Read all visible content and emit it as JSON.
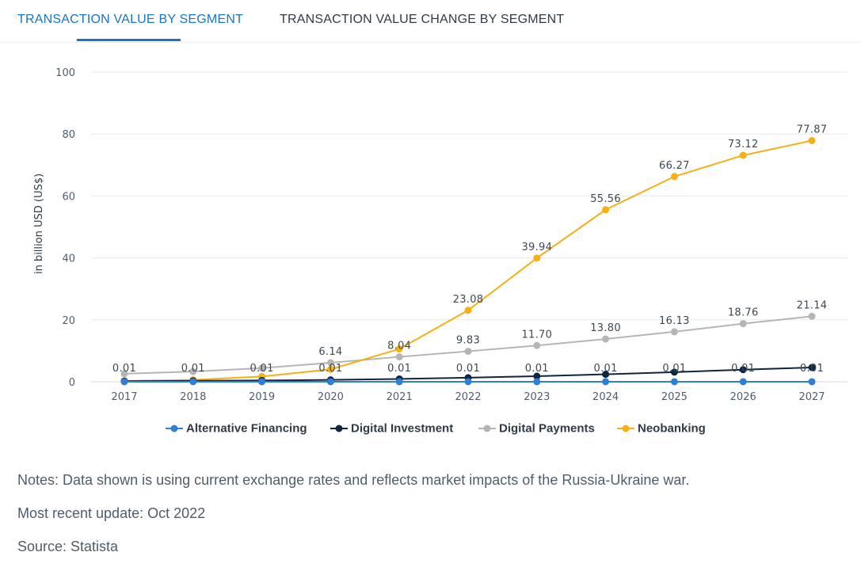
{
  "tabs": [
    {
      "label": "TRANSACTION VALUE BY SEGMENT",
      "active": true
    },
    {
      "label": "TRANSACTION VALUE CHANGE BY SEGMENT",
      "active": false
    }
  ],
  "colors": {
    "accent": "#1a73c4",
    "alternative_financing": "#2f7fd8",
    "digital_investment": "#0f2640",
    "digital_payments": "#b5b5b5",
    "neobanking": "#f5b013"
  },
  "chart_data": {
    "type": "line",
    "title": "",
    "xlabel": "",
    "ylabel": "in billion USD (US$)",
    "ylim": [
      0,
      100
    ],
    "yticks": [
      0,
      20,
      40,
      60,
      80,
      100
    ],
    "grid": true,
    "legend_position": "bottom",
    "x": [
      "2017",
      "2018",
      "2019",
      "2020",
      "2021",
      "2022",
      "2023",
      "2024",
      "2025",
      "2026",
      "2027"
    ],
    "series": [
      {
        "name": "Alternative Financing",
        "color": "#2f7fd8",
        "values": [
          0.01,
          0.01,
          0.01,
          0.01,
          0.01,
          0.01,
          0.01,
          0.01,
          0.01,
          0.01,
          0.01
        ],
        "labels": [
          "0.01",
          "0.01",
          "0.01",
          "0.01",
          "0.01",
          "0.01",
          "0.01",
          "0.01",
          "0.01",
          "0.01",
          "0.01"
        ]
      },
      {
        "name": "Digital Investment",
        "color": "#0f2640",
        "values": [
          0.2,
          0.3,
          0.4,
          0.6,
          0.9,
          1.3,
          1.8,
          2.4,
          3.1,
          3.9,
          4.6
        ],
        "labels": []
      },
      {
        "name": "Digital Payments",
        "color": "#b5b5b5",
        "values": [
          2.6,
          3.3,
          4.4,
          6.14,
          8.04,
          9.83,
          11.7,
          13.8,
          16.13,
          18.76,
          21.14
        ],
        "labels": [
          "",
          "",
          "",
          "6.14",
          "8.04",
          "9.83",
          "11.70",
          "13.80",
          "16.13",
          "18.76",
          "21.14"
        ]
      },
      {
        "name": "Neobanking",
        "color": "#f5b013",
        "values": [
          0.3,
          0.6,
          1.7,
          4.0,
          10.6,
          23.08,
          39.94,
          55.56,
          66.27,
          73.12,
          77.87
        ],
        "labels": [
          "",
          "",
          "",
          "",
          "",
          "23.08",
          "39.94",
          "55.56",
          "66.27",
          "73.12",
          "77.87"
        ]
      }
    ]
  },
  "notes": {
    "notes_text": "Notes: Data shown is using current exchange rates and reflects market impacts of the Russia-Ukraine war.",
    "update_text": "Most recent update: Oct 2022",
    "source_text": "Source: Statista"
  }
}
